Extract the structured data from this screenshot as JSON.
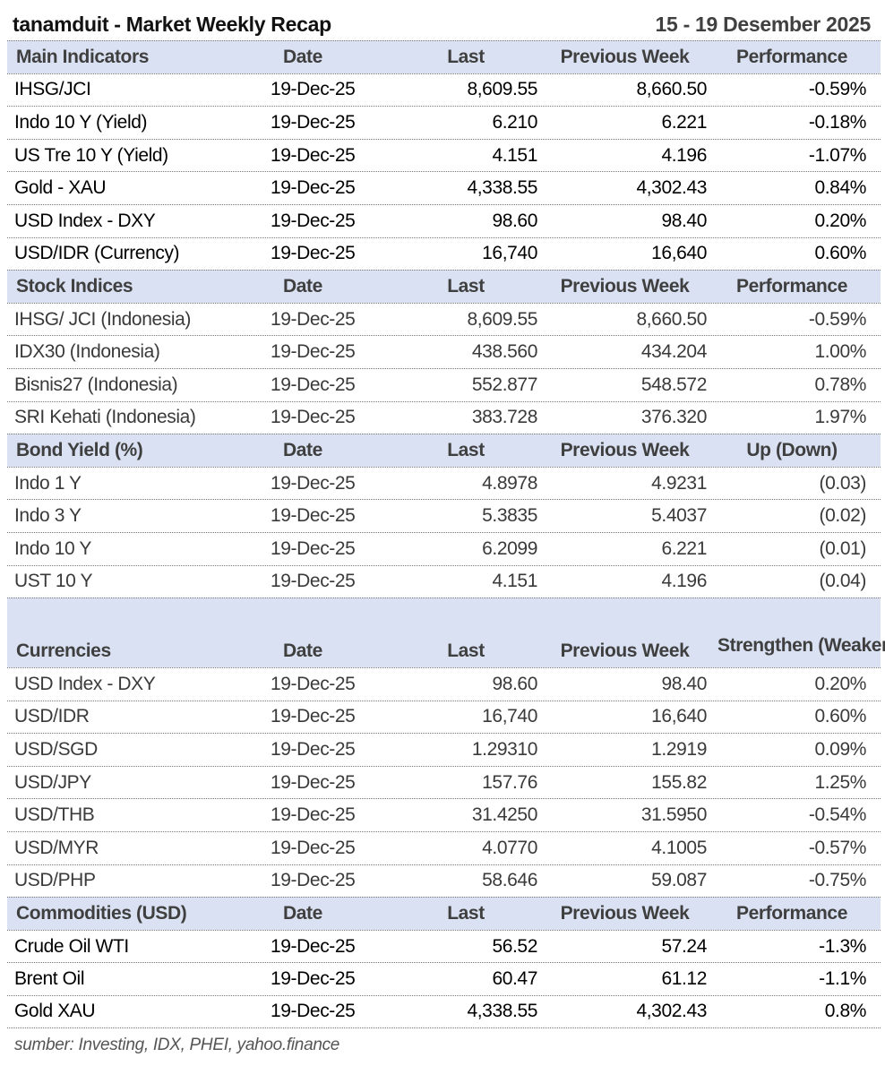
{
  "header": {
    "title": "tanamduit - Market Weekly Recap",
    "date_range": "15 - 19 Desember 2025"
  },
  "colors": {
    "header_bg": "#d9e1f2"
  },
  "sections": [
    {
      "columns": [
        "Main Indicators",
        "Date",
        "Last",
        "Previous Week",
        "Performance"
      ],
      "tone": "black",
      "rows": [
        [
          "IHSG/JCI",
          "19-Dec-25",
          "8,609.55",
          "8,660.50",
          "-0.59%"
        ],
        [
          "Indo 10 Y (Yield)",
          "19-Dec-25",
          "6.210",
          "6.221",
          "-0.18%"
        ],
        [
          "US Tre 10 Y (Yield)",
          "19-Dec-25",
          "4.151",
          "4.196",
          "-1.07%"
        ],
        [
          "Gold - XAU",
          "19-Dec-25",
          "4,338.55",
          "4,302.43",
          "0.84%"
        ],
        [
          "USD Index - DXY",
          "19-Dec-25",
          "98.60",
          "98.40",
          "0.20%"
        ],
        [
          "USD/IDR (Currency)",
          "19-Dec-25",
          "16,740",
          "16,640",
          "0.60%"
        ]
      ]
    },
    {
      "columns": [
        "Stock Indices",
        "Date",
        "Last",
        "Previous Week",
        "Performance"
      ],
      "tone": "gray",
      "rows": [
        [
          "IHSG/ JCI (Indonesia)",
          "19-Dec-25",
          "8,609.55",
          "8,660.50",
          "-0.59%"
        ],
        [
          "IDX30 (Indonesia)",
          "19-Dec-25",
          "438.560",
          "434.204",
          "1.00%"
        ],
        [
          "Bisnis27 (Indonesia)",
          "19-Dec-25",
          "552.877",
          "548.572",
          "0.78%"
        ],
        [
          "SRI Kehati (Indonesia)",
          "19-Dec-25",
          "383.728",
          "376.320",
          "1.97%"
        ]
      ]
    },
    {
      "columns": [
        "Bond Yield (%)",
        "Date",
        "Last",
        "Previous Week",
        "Up (Down)"
      ],
      "tone": "gray",
      "rows": [
        [
          "Indo 1 Y",
          "19-Dec-25",
          "4.8978",
          "4.9231",
          "(0.03)"
        ],
        [
          "Indo 3 Y",
          "19-Dec-25",
          "5.3835",
          "5.4037",
          "(0.02)"
        ],
        [
          "Indo 10 Y",
          "19-Dec-25",
          "6.2099",
          "6.221",
          "(0.01)"
        ],
        [
          "UST 10 Y",
          "19-Dec-25",
          "4.151",
          "4.196",
          "(0.04)"
        ]
      ]
    },
    {
      "columns": [
        "Currencies",
        "Date",
        "Last",
        "Previous Week",
        "Strengthen (Weaken)"
      ],
      "tone": "gray",
      "tall": true,
      "rows": [
        [
          "USD Index - DXY",
          "19-Dec-25",
          "98.60",
          "98.40",
          "0.20%"
        ],
        [
          "USD/IDR",
          "19-Dec-25",
          "16,740",
          "16,640",
          "0.60%"
        ],
        [
          "USD/SGD",
          "19-Dec-25",
          "1.29310",
          "1.2919",
          "0.09%"
        ],
        [
          "USD/JPY",
          "19-Dec-25",
          "157.76",
          "155.82",
          "1.25%"
        ],
        [
          "USD/THB",
          "19-Dec-25",
          "31.4250",
          "31.5950",
          "-0.54%"
        ],
        [
          "USD/MYR",
          "19-Dec-25",
          "4.0770",
          "4.1005",
          "-0.57%"
        ],
        [
          "USD/PHP",
          "19-Dec-25",
          "58.646",
          "59.087",
          "-0.75%"
        ]
      ]
    },
    {
      "columns": [
        "Commodities (USD)",
        "Date",
        "Last",
        "Previous Week",
        "Performance"
      ],
      "tone": "black",
      "rows": [
        [
          "Crude Oil WTI",
          "19-Dec-25",
          "56.52",
          "57.24",
          "-1.3%"
        ],
        [
          "Brent Oil",
          "19-Dec-25",
          "60.47",
          "61.12",
          "-1.1%"
        ],
        [
          "Gold XAU",
          "19-Dec-25",
          "4,338.55",
          "4,302.43",
          "0.8%"
        ]
      ]
    }
  ],
  "footer": {
    "source": "sumber: Investing, IDX, PHEI, yahoo.finance"
  }
}
